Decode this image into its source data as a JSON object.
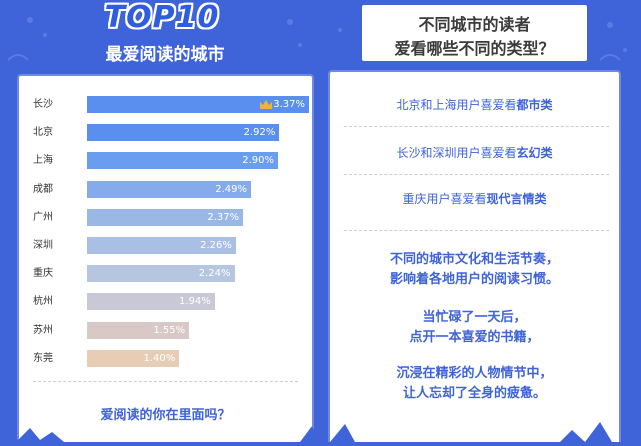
{
  "header": {
    "left_title": "TOP10",
    "left_subtitle": "最爱阅读的城市",
    "right_line1": "不同城市的读者",
    "right_line2": "爱看哪些不同的类型？"
  },
  "chart_data": {
    "type": "bar",
    "orientation": "horizontal",
    "title": "最爱阅读的城市",
    "categories": [
      "长沙",
      "北京",
      "上海",
      "成都",
      "广州",
      "深圳",
      "重庆",
      "杭州",
      "苏州",
      "东莞"
    ],
    "values": [
      3.37,
      2.92,
      2.9,
      2.49,
      2.37,
      2.26,
      2.24,
      1.94,
      1.55,
      1.4
    ],
    "value_labels": [
      "3.37%",
      "2.92%",
      "2.90%",
      "2.49%",
      "2.37%",
      "2.26%",
      "2.24%",
      "1.94%",
      "1.55%",
      "1.40%"
    ],
    "xlim": [
      0,
      3.37
    ],
    "grid": false,
    "bar_colors": [
      "#5a8ff0",
      "#5a8ff0",
      "#6a9cf0",
      "#86abea",
      "#9ab8e6",
      "#a9c0e4",
      "#b7c6e0",
      "#c9c8d6",
      "#d8c8c6",
      "#e7cdb6"
    ],
    "top_marker_icon": "crown-icon"
  },
  "left_footer": "爱阅读的你在里面吗？",
  "right_panel": {
    "items": [
      {
        "prefix": "北京和上海用户喜爱看",
        "em": "都市类"
      },
      {
        "prefix": "长沙和深圳用户喜爱看",
        "em": "玄幻类"
      },
      {
        "prefix": "重庆用户喜爱看",
        "em": "现代言情类"
      }
    ],
    "para1": [
      "不同的城市文化和生活节奏，",
      "影响着各地用户的阅读习惯。"
    ],
    "para2": [
      "当忙碌了一天后，",
      "点开一本喜爱的书籍，"
    ],
    "para3": [
      "沉浸在精彩的人物情节中，",
      "让人忘却了全身的疲惫。"
    ]
  },
  "colors": {
    "background": "#3f63d8",
    "accent": "#3f63d8",
    "panel": "#ffffff"
  }
}
